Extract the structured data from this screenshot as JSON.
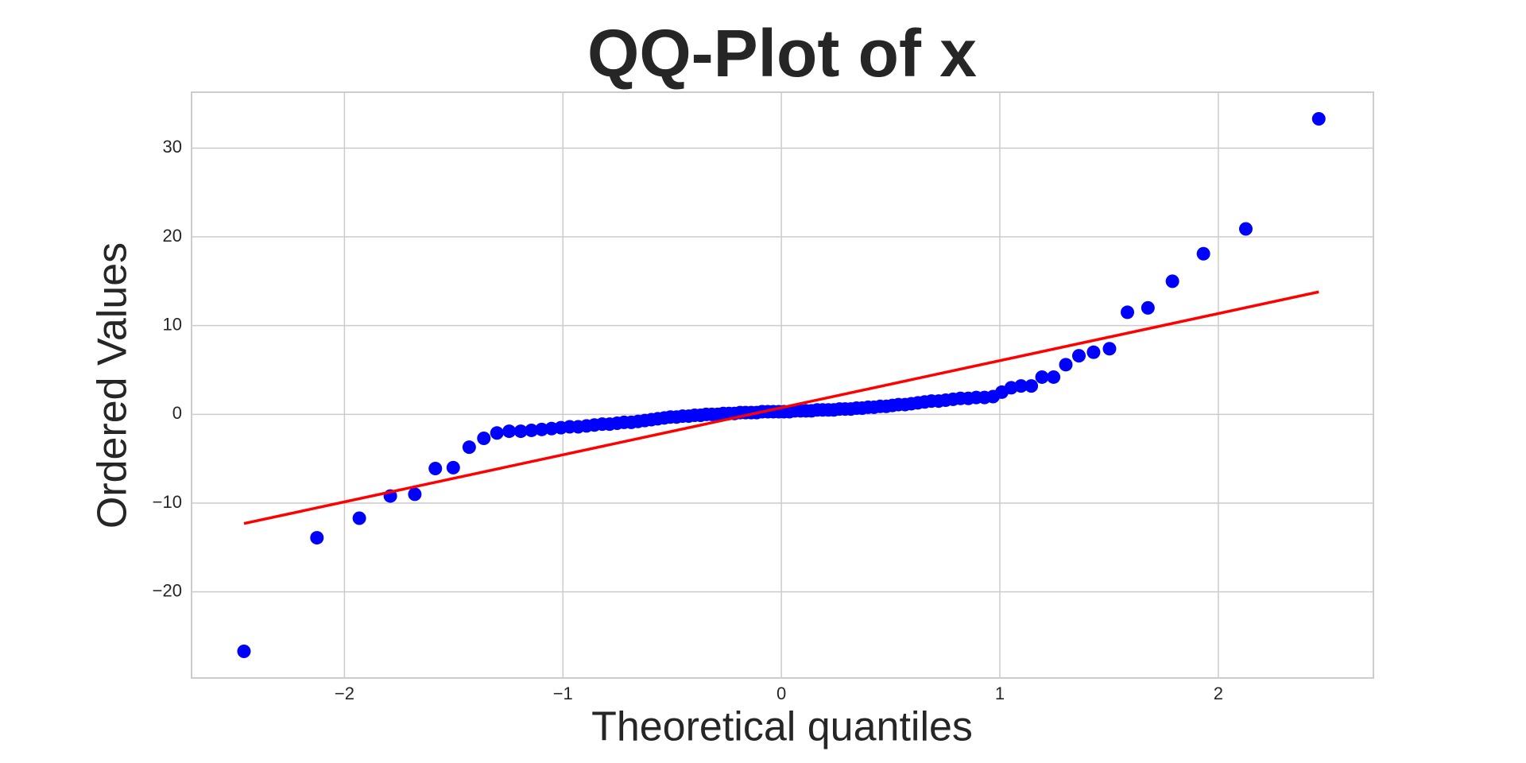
{
  "chart_data": {
    "type": "scatter",
    "title": "QQ-Plot of x",
    "x_label": "Theoretical quantiles",
    "y_label": "Ordered Values",
    "series": [
      {
        "color": "#0000ff",
        "x": [
          -2.46,
          -2.126,
          -1.932,
          -1.79,
          -1.678,
          -1.584,
          -1.502,
          -1.429,
          -1.362,
          -1.302,
          -1.246,
          -1.193,
          -1.144,
          -1.097,
          -1.052,
          -1.009,
          -0.969,
          -0.93,
          -0.892,
          -0.856,
          -0.82,
          -0.786,
          -0.752,
          -0.72,
          -0.687,
          -0.656,
          -0.625,
          -0.595,
          -0.566,
          -0.536,
          -0.508,
          -0.48,
          -0.452,
          -0.424,
          -0.397,
          -0.37,
          -0.344,
          -0.318,
          -0.292,
          -0.266,
          -0.24,
          -0.215,
          -0.189,
          -0.164,
          -0.138,
          -0.113,
          -0.088,
          -0.062,
          -0.037,
          -0.012,
          0.012,
          0.037,
          0.062,
          0.088,
          0.113,
          0.138,
          0.164,
          0.189,
          0.215,
          0.24,
          0.266,
          0.292,
          0.318,
          0.344,
          0.37,
          0.397,
          0.424,
          0.452,
          0.48,
          0.508,
          0.536,
          0.566,
          0.595,
          0.625,
          0.656,
          0.687,
          0.72,
          0.752,
          0.786,
          0.82,
          0.856,
          0.892,
          0.93,
          0.969,
          1.009,
          1.052,
          1.097,
          1.144,
          1.193,
          1.246,
          1.302,
          1.362,
          1.429,
          1.502,
          1.584,
          1.678,
          1.79,
          1.932,
          2.126,
          2.46
        ],
        "values": [
          -26.7,
          -13.9,
          -11.7,
          -9.2,
          -9.0,
          -6.1,
          -6.0,
          -3.7,
          -2.7,
          -2.1,
          -1.9,
          -1.9,
          -1.8,
          -1.7,
          -1.6,
          -1.5,
          -1.4,
          -1.4,
          -1.3,
          -1.2,
          -1.1,
          -1.1,
          -1.0,
          -0.9,
          -0.9,
          -0.8,
          -0.7,
          -0.6,
          -0.5,
          -0.4,
          -0.3,
          -0.3,
          -0.2,
          -0.2,
          -0.1,
          -0.1,
          0.0,
          0.0,
          0.0,
          0.1,
          0.1,
          0.1,
          0.2,
          0.2,
          0.2,
          0.2,
          0.3,
          0.3,
          0.3,
          0.3,
          0.3,
          0.3,
          0.4,
          0.4,
          0.4,
          0.4,
          0.5,
          0.5,
          0.5,
          0.5,
          0.6,
          0.6,
          0.6,
          0.7,
          0.7,
          0.8,
          0.8,
          0.9,
          0.9,
          1.0,
          1.1,
          1.1,
          1.2,
          1.3,
          1.4,
          1.5,
          1.5,
          1.6,
          1.7,
          1.8,
          1.8,
          1.9,
          1.9,
          2.0,
          2.5,
          3.0,
          3.2,
          3.2,
          4.2,
          4.2,
          5.6,
          6.6,
          7.0,
          7.4,
          11.5,
          12.0,
          15.0,
          18.1,
          20.9,
          33.3
        ]
      }
    ],
    "fit_line": {
      "color": "#ff0000",
      "x": [
        -2.46,
        2.46
      ],
      "values": [
        -12.3,
        13.8
      ]
    },
    "xlim": [
      -2.7,
      2.71
    ],
    "ylim": [
      -29.7,
      36.3
    ],
    "xticks": [
      {
        "value": -2,
        "label": "−2"
      },
      {
        "value": -1,
        "label": "−1"
      },
      0,
      1,
      2
    ],
    "yticks": [
      {
        "value": -20,
        "label": "−20"
      },
      {
        "value": -10,
        "label": "−10"
      },
      0,
      10,
      20,
      30
    ],
    "grid": true
  }
}
